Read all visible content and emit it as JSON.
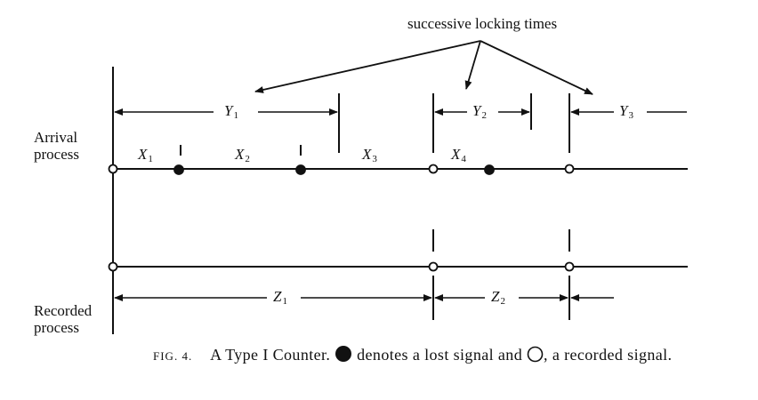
{
  "header_note": "successive locking times",
  "row_labels": {
    "arrival": [
      "Arrival",
      "process"
    ],
    "recorded": [
      "Recorded",
      "process"
    ]
  },
  "variables": {
    "Y1": {
      "base": "Y",
      "sub": "1"
    },
    "Y2": {
      "base": "Y",
      "sub": "2"
    },
    "Y3": {
      "base": "Y",
      "sub": "3"
    },
    "X1": {
      "base": "X",
      "sub": "1"
    },
    "X2": {
      "base": "X",
      "sub": "2"
    },
    "X3": {
      "base": "X",
      "sub": "3"
    },
    "X4": {
      "base": "X",
      "sub": "4"
    },
    "Z1": {
      "base": "Z",
      "sub": "1"
    },
    "Z2": {
      "base": "Z",
      "sub": "2"
    }
  },
  "caption": {
    "fig_label": "FIG. 4.",
    "text_a": "A Type I Counter.",
    "text_b": "denotes a lost signal and",
    "text_c": ", a recorded signal."
  },
  "legend_icons": [
    "filled-circle-icon",
    "open-circle-icon"
  ]
}
